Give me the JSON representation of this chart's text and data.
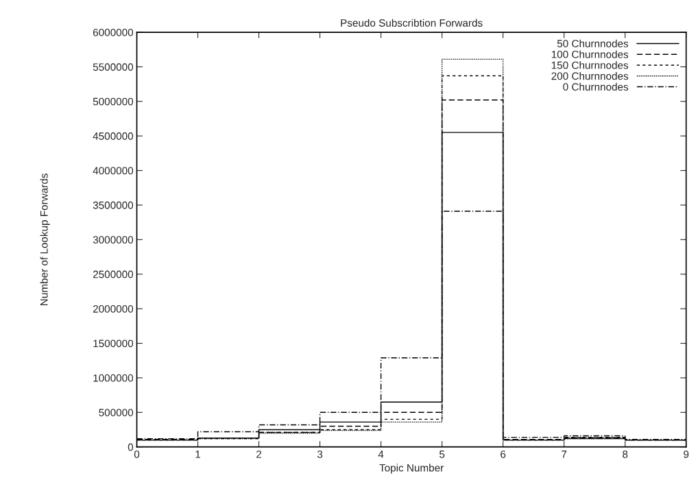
{
  "chart_data": {
    "type": "step",
    "title": "Pseudo Subscribtion Forwards",
    "xlabel": "Topic Number",
    "ylabel": "Number of Lookup Forwards",
    "x": [
      0,
      1,
      2,
      3,
      4,
      5,
      6,
      7,
      8,
      9
    ],
    "series": [
      {
        "name": "50 Churnnodes",
        "color": "#000000",
        "line_style": "solid",
        "values": [
          100000,
          130000,
          250000,
          360000,
          650000,
          4550000,
          100000,
          120000,
          100000,
          100000
        ]
      },
      {
        "name": "100 Churnnodes",
        "color": "#000000",
        "line_style": "dashed",
        "values": [
          110000,
          130000,
          210000,
          300000,
          500000,
          5020000,
          110000,
          130000,
          100000,
          100000
        ]
      },
      {
        "name": "150 Churnnodes",
        "color": "#000000",
        "line_style": "short_dashed",
        "values": [
          100000,
          120000,
          210000,
          250000,
          400000,
          5370000,
          100000,
          140000,
          100000,
          100000
        ]
      },
      {
        "name": "200 Churnnodes",
        "color": "#000000",
        "line_style": "dotted",
        "values": [
          100000,
          120000,
          200000,
          240000,
          360000,
          5610000,
          100000,
          140000,
          100000,
          100000
        ]
      },
      {
        "name": "0 Churnnodes",
        "color": "#000000",
        "line_style": "dashdot",
        "values": [
          120000,
          220000,
          320000,
          500000,
          1290000,
          3410000,
          140000,
          160000,
          110000,
          110000
        ]
      }
    ],
    "xlim": [
      0,
      9
    ],
    "xticks": [
      0,
      1,
      2,
      3,
      4,
      5,
      6,
      7,
      8,
      9
    ],
    "ylim": [
      0,
      6000000
    ],
    "yticks": [
      0,
      500000,
      1000000,
      1500000,
      2000000,
      2500000,
      3000000,
      3500000,
      4000000,
      4500000,
      5000000,
      5500000,
      6000000
    ],
    "legend": "top right",
    "grid": false
  }
}
